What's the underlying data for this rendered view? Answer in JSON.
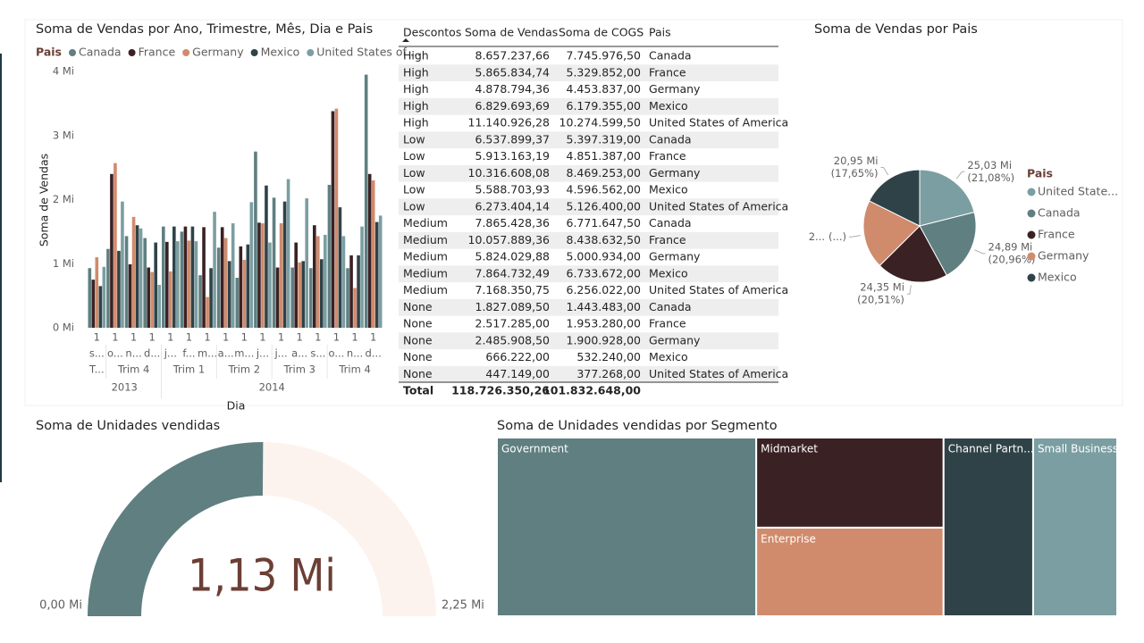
{
  "chart_data": [
    {
      "type": "bar",
      "title": "Soma de Vendas por Ano, Trimestre, Mês, Dia e Pais",
      "y_label": "Soma de Vendas",
      "x_label": "Dia",
      "legend_title": "Pais",
      "categories": [
        "1",
        "1",
        "1",
        "1",
        "1",
        "1",
        "1",
        "1",
        "1",
        "1",
        "1",
        "1",
        "1",
        "1",
        "1",
        "1"
      ],
      "months": [
        "s...",
        "o...",
        "n...",
        "d...",
        "j...",
        "f...",
        "m...",
        "a...",
        "m...",
        "j...",
        "j...",
        "a...",
        "s...",
        "o...",
        "n...",
        "d..."
      ],
      "quarters": [
        "T...",
        "Trim 4",
        null,
        null,
        "Trim 1",
        null,
        null,
        "Trim 2",
        null,
        null,
        "Trim 3",
        null,
        null,
        "Trim 4",
        null,
        null
      ],
      "years": [
        "2013",
        null,
        null,
        null,
        "2014",
        null,
        null,
        null,
        null,
        null,
        null,
        null,
        null,
        null,
        null,
        null
      ],
      "series": [
        {
          "name": "Canada",
          "color": "#5f7f81",
          "values": [
            0.93,
            1.23,
            1.43,
            1.4,
            1.58,
            1.5,
            0.82,
            1.25,
            0.78,
            2.75,
            2.03,
            0.94,
            0.93,
            2.23,
            0.93,
            3.95
          ]
        },
        {
          "name": "France",
          "color": "#3a2124",
          "values": [
            0.75,
            2.4,
            0.99,
            0.94,
            1.34,
            1.58,
            1.57,
            1.57,
            1.27,
            1.64,
            0.94,
            1.33,
            1.6,
            3.38,
            1.13,
            2.4
          ]
        },
        {
          "name": "Germany",
          "color": "#d08b6c",
          "values": [
            1.1,
            2.57,
            1.73,
            0.87,
            0.88,
            1.36,
            0.48,
            1.4,
            1.06,
            1.63,
            1.63,
            1.02,
            1.43,
            3.42,
            0.62,
            2.3
          ]
        },
        {
          "name": "Mexico",
          "color": "#2f4247",
          "values": [
            0.65,
            1.2,
            1.6,
            1.33,
            1.58,
            1.58,
            0.93,
            1.04,
            1.3,
            2.22,
            1.97,
            1.04,
            1.07,
            1.88,
            1.13,
            1.65
          ]
        },
        {
          "name": "United States of ...",
          "color": "#7b9ea2",
          "values": [
            0.95,
            1.97,
            1.55,
            0.67,
            1.35,
            1.35,
            1.81,
            1.63,
            1.96,
            1.33,
            2.32,
            2.02,
            1.45,
            1.43,
            1.58,
            1.75
          ]
        }
      ],
      "ylim": [
        0,
        4
      ],
      "yticks": [
        {
          "value": 0,
          "label": "0 Mi"
        },
        {
          "value": 1,
          "label": "1 Mi"
        },
        {
          "value": 2,
          "label": "2 Mi"
        },
        {
          "value": 3,
          "label": "3 Mi"
        },
        {
          "value": 4,
          "label": "4 Mi"
        }
      ],
      "grid": false
    },
    {
      "type": "pie",
      "title": "Soma de Vendas por Pais",
      "legend_title": "Pais",
      "categories": [
        "United State...",
        "Canada",
        "France",
        "Germany",
        "Mexico"
      ],
      "values": [
        25.03,
        24.89,
        24.35,
        23.51,
        20.95
      ],
      "value_labels": [
        "25,03 Mi",
        "24,89 Mi",
        "24,35 Mi",
        "2...",
        "20,95 Mi"
      ],
      "percent_labels": [
        "(21,08%)",
        "(20,96%)",
        "(20,51%)",
        "(...)",
        "(17,65%)"
      ],
      "colors": [
        "#7b9ea2",
        "#5f7f81",
        "#3a2124",
        "#d08b6c",
        "#2f4247"
      ]
    },
    {
      "type": "gauge",
      "title": "Soma de Unidades vendidas",
      "value": 1.13,
      "value_label": "1,13 Mi",
      "ylim": [
        0,
        2.25
      ],
      "yticks": [
        {
          "value": 0,
          "label": "0,00 Mi"
        },
        {
          "value": 2.25,
          "label": "2,25 Mi"
        }
      ],
      "color": "#5f7f81",
      "track_color": "#fdf3ee"
    },
    {
      "type": "treemap",
      "title": "Soma de Unidades vendidas por Segmento",
      "categories": [
        "Government",
        "Midmarket",
        "Enterprise",
        "Channel Partn...",
        "Small Business"
      ],
      "values": [
        0.472,
        0.172,
        0.169,
        0.163,
        0.153
      ],
      "colors": [
        "#5f7f81",
        "#3a2124",
        "#d08b6c",
        "#2f4247",
        "#7b9ea2"
      ]
    }
  ],
  "table": {
    "columns": [
      "Descontos",
      "Soma de Vendas",
      "Soma de COGS",
      "Pais"
    ],
    "rows": [
      [
        "High",
        "8.657.237,66",
        "7.745.976,50",
        "Canada"
      ],
      [
        "High",
        "5.865.834,74",
        "5.329.852,00",
        "France"
      ],
      [
        "High",
        "4.878.794,36",
        "4.453.837,00",
        "Germany"
      ],
      [
        "High",
        "6.829.693,69",
        "6.179.355,00",
        "Mexico"
      ],
      [
        "High",
        "11.140.926,28",
        "10.274.599,50",
        "United States of America"
      ],
      [
        "Low",
        "6.537.899,37",
        "5.397.319,00",
        "Canada"
      ],
      [
        "Low",
        "5.913.163,19",
        "4.851.387,00",
        "France"
      ],
      [
        "Low",
        "10.316.608,08",
        "8.469.253,00",
        "Germany"
      ],
      [
        "Low",
        "5.588.703,93",
        "4.596.562,00",
        "Mexico"
      ],
      [
        "Low",
        "6.273.404,14",
        "5.126.400,00",
        "United States of America"
      ],
      [
        "Medium",
        "7.865.428,36",
        "6.771.647,50",
        "Canada"
      ],
      [
        "Medium",
        "10.057.889,36",
        "8.438.632,50",
        "France"
      ],
      [
        "Medium",
        "5.824.029,88",
        "5.000.934,00",
        "Germany"
      ],
      [
        "Medium",
        "7.864.732,49",
        "6.733.672,00",
        "Mexico"
      ],
      [
        "Medium",
        "7.168.350,75",
        "6.256.022,00",
        "United States of America"
      ],
      [
        "None",
        "1.827.089,50",
        "1.443.483,00",
        "Canada"
      ],
      [
        "None",
        "2.517.285,00",
        "1.953.280,00",
        "France"
      ],
      [
        "None",
        "2.485.908,50",
        "1.900.928,00",
        "Germany"
      ],
      [
        "None",
        "666.222,00",
        "532.240,00",
        "Mexico"
      ],
      [
        "None",
        "447.149,00",
        "377.268,00",
        "United States of America"
      ]
    ],
    "total": [
      "Total",
      "118.726.350,26",
      "101.832.648,00"
    ]
  }
}
